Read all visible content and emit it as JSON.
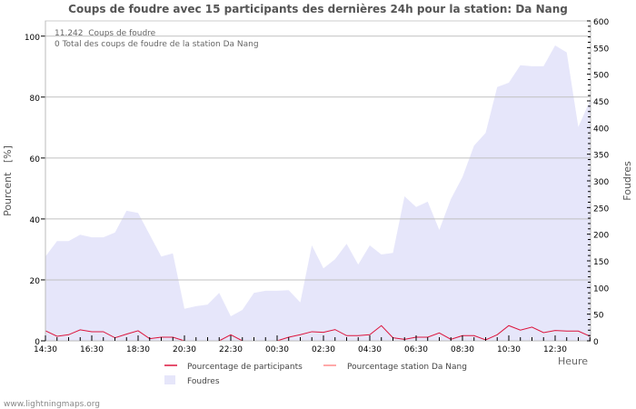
{
  "chart_data": {
    "type": "area",
    "title": "Coups de foudre avec 15 participants des dernières 24h pour la station: Da Nang",
    "info_lines": [
      "11.242  Coups de foudre",
      "0 Total des coups de foudre de la station Da Nang"
    ],
    "xlabel": "Heure",
    "ylabel_left": "Pourcent   [%]",
    "ylabel_right": "Foudres",
    "ylim_left": [
      0,
      105
    ],
    "ylim_right": [
      0,
      600
    ],
    "left_ticks": [
      0,
      20,
      40,
      60,
      80,
      100
    ],
    "right_ticks": [
      0,
      50,
      100,
      150,
      200,
      250,
      300,
      350,
      400,
      450,
      500,
      550,
      600
    ],
    "x_tick_labels": [
      "14:30",
      "16:30",
      "18:30",
      "20:30",
      "22:30",
      "00:30",
      "02:30",
      "04:30",
      "06:30",
      "08:30",
      "10:30",
      "12:30"
    ],
    "x_hours_per_point": 0.5,
    "x_span_hours": 23.53,
    "grid": true,
    "legend_position": "bottom",
    "series": [
      {
        "name": "Pourcentage de participants",
        "axis": "left",
        "color": "#dc143c",
        "values": [
          3.3,
          1.5,
          2,
          3.6,
          3,
          3,
          1,
          2.2,
          3.3,
          0.7,
          1.2,
          1.2,
          0,
          0,
          0,
          0,
          2,
          0,
          0,
          0,
          0,
          1.2,
          2,
          3,
          2.8,
          3.7,
          1.7,
          1.7,
          2,
          5,
          1,
          0.5,
          1.2,
          1.2,
          2.6,
          0.5,
          1.7,
          1.7,
          0.3,
          2,
          5,
          3.5,
          4.5,
          2.7,
          3.4,
          3.2,
          3.2,
          1.5
        ]
      },
      {
        "name": "Pourcentage station Da Nang",
        "axis": "left",
        "color": "#ff8c8c",
        "values": [
          0,
          0,
          0,
          0,
          0,
          0,
          0,
          0,
          0,
          0,
          0,
          0,
          0,
          0,
          0,
          0,
          0,
          0,
          0,
          0,
          0,
          0,
          0,
          0,
          0,
          0,
          0,
          0,
          0,
          0,
          0,
          0,
          0,
          0,
          0,
          0,
          0,
          0,
          0,
          0,
          0,
          0,
          0,
          0,
          0,
          0,
          0,
          0
        ]
      },
      {
        "name": "Foudres",
        "axis": "right",
        "color": "#e6e6fa",
        "values": [
          158,
          187,
          187,
          199,
          194,
          194,
          203,
          244,
          240,
          199,
          158,
          164,
          60,
          65,
          68,
          90,
          46,
          58,
          90,
          94,
          94,
          95,
          72,
          179,
          136,
          153,
          182,
          143,
          179,
          162,
          165,
          271,
          251,
          261,
          208,
          266,
          307,
          366,
          390,
          476,
          484,
          517,
          515,
          515,
          554,
          541,
          401,
          450
        ]
      }
    ]
  },
  "footer": "www.lightningmaps.org"
}
